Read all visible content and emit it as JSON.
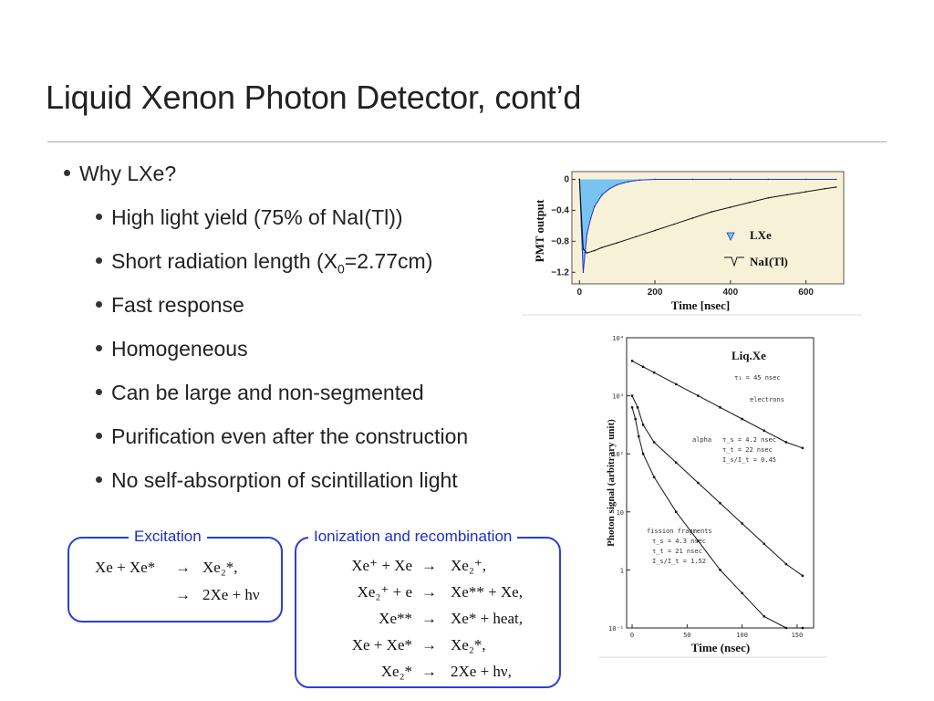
{
  "slide": {
    "title": "Liquid Xenon Photon Detector, cont’d",
    "main_bullet": "Why LXe?",
    "sub_bullets": [
      "High light yield (75% of NaI(Tl))",
      "Short radiation length (X",
      "Fast response",
      "Homogeneous",
      "Can be large and non-segmented",
      "Purification even after the construction",
      "No self-absorption of scintillation light"
    ],
    "radlen_sub": "0",
    "radlen_tail": "=2.77cm)"
  },
  "excitation": {
    "label": "Excitation",
    "lines": [
      {
        "lhs": "Xe + Xe*",
        "arrow": "→",
        "rhs": "Xe₂*,"
      },
      {
        "lhs": "",
        "arrow": "→",
        "rhs": "2Xe + hν"
      }
    ]
  },
  "ionization": {
    "label": "Ionization and recombination",
    "lines": [
      {
        "lhs": "Xe⁺ + Xe",
        "arrow": "→",
        "rhs": "Xe₂⁺,"
      },
      {
        "lhs": "Xe₂⁺ + e",
        "arrow": "→",
        "rhs": "Xe** + Xe,"
      },
      {
        "lhs": "Xe**",
        "arrow": "→",
        "rhs": "Xe* + heat,"
      },
      {
        "lhs": "Xe + Xe*",
        "arrow": "→",
        "rhs": "Xe₂*,"
      },
      {
        "lhs": "Xe₂*",
        "arrow": "→",
        "rhs": "2Xe + hν,"
      }
    ]
  },
  "chart_data": [
    {
      "type": "line",
      "title": "",
      "xlabel": "Time [nsec]",
      "ylabel": "PMT output",
      "xticks": [
        "0",
        "200",
        "400",
        "600"
      ],
      "yticks": [
        "0",
        "−0.4",
        "−0.8",
        "−1.2"
      ],
      "xlim": [
        -20,
        700
      ],
      "ylim": [
        -1.35,
        0.1
      ],
      "legend": [
        "LXe",
        "NaI(Tl)"
      ],
      "legend_position": "right",
      "colors": {
        "background": "#f7f1d8",
        "lxe_fill": "#79c3f0",
        "lxe_line": "#2233cc",
        "nai": "#111111"
      },
      "series": [
        {
          "name": "LXe",
          "x": [
            0,
            5,
            10,
            15,
            20,
            30,
            40,
            60,
            80,
            100,
            130,
            160,
            200,
            300,
            400,
            500,
            600,
            680
          ],
          "values": [
            0,
            -0.6,
            -1.2,
            -0.95,
            -0.7,
            -0.5,
            -0.35,
            -0.2,
            -0.12,
            -0.07,
            -0.03,
            -0.01,
            0,
            0,
            0,
            0,
            0,
            0
          ]
        },
        {
          "name": "NaI(Tl)",
          "x": [
            0,
            10,
            20,
            40,
            60,
            100,
            150,
            200,
            250,
            300,
            350,
            400,
            450,
            500,
            550,
            600,
            650,
            680
          ],
          "values": [
            0,
            -0.9,
            -0.95,
            -0.92,
            -0.88,
            -0.82,
            -0.74,
            -0.66,
            -0.58,
            -0.5,
            -0.42,
            -0.36,
            -0.3,
            -0.24,
            -0.2,
            -0.16,
            -0.12,
            -0.1
          ]
        }
      ]
    },
    {
      "type": "scatter",
      "title": "Liq.Xe",
      "xlabel": "Time (nsec)",
      "ylabel": "Photon signal (arbitrary unit)",
      "xticks": [
        "0",
        "50",
        "100",
        "150"
      ],
      "yticks": [
        "10⁴",
        "10³",
        "10²",
        "10",
        "1",
        "10⁻¹"
      ],
      "xlim": [
        -5,
        165
      ],
      "ylim_log10": [
        -1,
        4
      ],
      "annotations": [
        "τ₁ = 45 nsec",
        "electrons",
        "alpha",
        "τ_s = 4.2 nsec",
        "τ_t = 22 nsec",
        "I_s/I_t = 0.45",
        "fission fragments",
        "τ_s = 4.3 nsec",
        "τ_t = 21 nsec",
        "I_s/I_t = 1.52"
      ],
      "series": [
        {
          "name": "electrons",
          "x": [
            0,
            10,
            20,
            40,
            60,
            80,
            100,
            120,
            140,
            155
          ],
          "values": [
            3.6,
            3.5,
            3.4,
            3.2,
            3.0,
            2.8,
            2.6,
            2.4,
            2.2,
            2.1
          ]
        },
        {
          "name": "alpha",
          "x": [
            0,
            5,
            10,
            20,
            40,
            60,
            80,
            100,
            120,
            140,
            155
          ],
          "values": [
            3.0,
            2.8,
            2.5,
            2.2,
            1.85,
            1.5,
            1.15,
            0.8,
            0.45,
            0.1,
            -0.1
          ]
        },
        {
          "name": "fission fragments",
          "x": [
            0,
            3,
            6,
            10,
            20,
            40,
            60,
            80,
            100,
            120,
            140,
            155
          ],
          "values": [
            2.8,
            2.6,
            2.3,
            2.0,
            1.6,
            1.0,
            0.5,
            0.0,
            -0.4,
            -0.8,
            -1.0,
            -1.0
          ]
        }
      ]
    }
  ]
}
